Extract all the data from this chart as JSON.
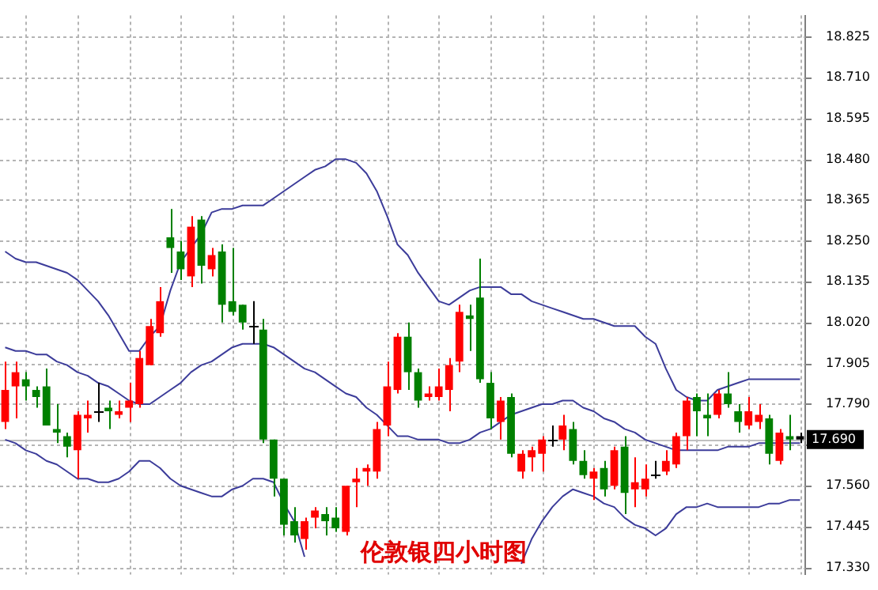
{
  "chart_data": {
    "type": "candlestick",
    "title": "伦敦银四小时图",
    "categories": [
      null,
      null,
      null,
      null,
      null,
      null,
      null,
      null,
      null,
      null,
      null,
      null,
      null,
      null,
      null,
      null,
      null,
      null,
      null,
      null,
      null,
      null,
      null,
      null,
      null,
      null,
      null,
      null,
      null,
      null,
      null,
      null,
      null,
      null,
      null,
      null,
      null,
      null,
      null,
      null,
      null,
      null,
      null,
      null,
      null,
      null,
      null,
      null,
      null,
      null,
      null,
      null,
      null,
      null,
      null,
      null,
      null,
      null,
      null,
      null,
      null,
      null,
      null,
      null,
      null,
      null,
      null,
      null,
      null,
      null,
      null,
      null,
      null,
      null,
      null,
      null,
      null,
      null
    ],
    "ohlc": [
      [
        17.74,
        17.91,
        17.72,
        17.83
      ],
      [
        17.84,
        17.91,
        17.75,
        17.88
      ],
      [
        17.86,
        17.88,
        17.8,
        17.84
      ],
      [
        17.83,
        17.84,
        17.78,
        17.81
      ],
      [
        17.84,
        17.89,
        17.73,
        17.73
      ],
      [
        17.72,
        17.79,
        17.68,
        17.71
      ],
      [
        17.7,
        17.71,
        17.64,
        17.67
      ],
      [
        17.66,
        17.77,
        17.58,
        17.76
      ],
      [
        17.75,
        17.8,
        17.71,
        17.76
      ],
      [
        17.77,
        17.85,
        17.74,
        17.77
      ],
      [
        17.78,
        17.8,
        17.72,
        17.77
      ],
      [
        17.76,
        17.8,
        17.75,
        17.77
      ],
      [
        17.78,
        17.85,
        17.74,
        17.8
      ],
      [
        17.79,
        17.94,
        17.78,
        17.92
      ],
      [
        17.9,
        18.03,
        17.9,
        18.01
      ],
      [
        17.99,
        18.12,
        17.98,
        18.08
      ],
      [
        18.26,
        18.34,
        18.16,
        18.23
      ],
      [
        18.22,
        18.25,
        18.14,
        18.17
      ],
      [
        18.15,
        18.32,
        18.12,
        18.29
      ],
      [
        18.31,
        18.32,
        18.13,
        18.18
      ],
      [
        18.17,
        18.23,
        18.15,
        18.21
      ],
      [
        18.22,
        18.24,
        18.02,
        18.07
      ],
      [
        18.08,
        18.23,
        18.04,
        18.05
      ],
      [
        18.07,
        18.07,
        18.0,
        18.02
      ],
      [
        18.01,
        18.08,
        17.96,
        18.01
      ],
      [
        18.0,
        18.03,
        17.68,
        17.69
      ],
      [
        17.69,
        17.69,
        17.53,
        17.58
      ],
      [
        17.58,
        17.58,
        17.42,
        17.45
      ],
      [
        17.46,
        17.5,
        17.4,
        17.42
      ],
      [
        17.41,
        17.47,
        17.38,
        17.46
      ],
      [
        17.47,
        17.5,
        17.44,
        17.49
      ],
      [
        17.48,
        17.5,
        17.42,
        17.46
      ],
      [
        17.47,
        17.5,
        17.43,
        17.44
      ],
      [
        17.43,
        17.56,
        17.42,
        17.56
      ],
      [
        17.57,
        17.61,
        17.5,
        17.58
      ],
      [
        17.6,
        17.62,
        17.56,
        17.61
      ],
      [
        17.6,
        17.74,
        17.58,
        17.72
      ],
      [
        17.73,
        17.91,
        17.7,
        17.84
      ],
      [
        17.83,
        17.99,
        17.82,
        17.98
      ],
      [
        17.98,
        18.02,
        17.83,
        17.88
      ],
      [
        17.88,
        17.89,
        17.78,
        17.8
      ],
      [
        17.81,
        17.84,
        17.8,
        17.82
      ],
      [
        17.81,
        17.89,
        17.8,
        17.84
      ],
      [
        17.83,
        17.92,
        17.77,
        17.9
      ],
      [
        17.91,
        18.07,
        17.88,
        18.05
      ],
      [
        18.04,
        18.07,
        17.94,
        18.03
      ],
      [
        18.09,
        18.2,
        17.85,
        17.86
      ],
      [
        17.85,
        17.88,
        17.72,
        17.75
      ],
      [
        17.74,
        17.81,
        17.69,
        17.8
      ],
      [
        17.81,
        17.82,
        17.64,
        17.65
      ],
      [
        17.6,
        17.66,
        17.58,
        17.65
      ],
      [
        17.64,
        17.67,
        17.6,
        17.66
      ],
      [
        17.65,
        17.7,
        17.6,
        17.69
      ],
      [
        17.69,
        17.73,
        17.67,
        17.69
      ],
      [
        17.69,
        17.76,
        17.66,
        17.73
      ],
      [
        17.72,
        17.74,
        17.62,
        17.63
      ],
      [
        17.63,
        17.66,
        17.58,
        17.59
      ],
      [
        17.58,
        17.61,
        17.52,
        17.6
      ],
      [
        17.61,
        17.63,
        17.53,
        17.55
      ],
      [
        17.56,
        17.67,
        17.55,
        17.66
      ],
      [
        17.67,
        17.7,
        17.48,
        17.54
      ],
      [
        17.55,
        17.64,
        17.5,
        17.57
      ],
      [
        17.55,
        17.62,
        17.53,
        17.58
      ],
      [
        17.59,
        17.63,
        17.58,
        17.59
      ],
      [
        17.6,
        17.66,
        17.59,
        17.63
      ],
      [
        17.62,
        17.71,
        17.61,
        17.7
      ],
      [
        17.7,
        17.81,
        17.66,
        17.8
      ],
      [
        17.81,
        17.82,
        17.7,
        17.77
      ],
      [
        17.76,
        17.82,
        17.7,
        17.75
      ],
      [
        17.76,
        17.83,
        17.75,
        17.82
      ],
      [
        17.82,
        17.88,
        17.78,
        17.79
      ],
      [
        17.77,
        17.79,
        17.71,
        17.74
      ],
      [
        17.73,
        17.81,
        17.72,
        17.77
      ],
      [
        17.74,
        17.79,
        17.72,
        17.76
      ],
      [
        17.75,
        17.76,
        17.62,
        17.65
      ],
      [
        17.63,
        17.72,
        17.62,
        17.71
      ],
      [
        17.7,
        17.76,
        17.66,
        17.69
      ],
      [
        17.7,
        17.71,
        17.68,
        17.69
      ]
    ],
    "colors": [
      "#ff0000",
      "#ff0000",
      "#008000",
      "#008000",
      "#008000",
      "#008000",
      "#008000",
      "#ff0000",
      "#ff0000",
      "#000000",
      "#008000",
      "#ff0000",
      "#ff0000",
      "#ff0000",
      "#ff0000",
      "#ff0000",
      "#008000",
      "#008000",
      "#ff0000",
      "#008000",
      "#ff0000",
      "#008000",
      "#008000",
      "#008000",
      "#000000",
      "#008000",
      "#008000",
      "#008000",
      "#008000",
      "#ff0000",
      "#ff0000",
      "#008000",
      "#008000",
      "#ff0000",
      "#ff0000",
      "#ff0000",
      "#ff0000",
      "#ff0000",
      "#ff0000",
      "#008000",
      "#008000",
      "#ff0000",
      "#ff0000",
      "#ff0000",
      "#ff0000",
      "#008000",
      "#008000",
      "#008000",
      "#ff0000",
      "#008000",
      "#ff0000",
      "#ff0000",
      "#ff0000",
      "#000000",
      "#ff0000",
      "#008000",
      "#008000",
      "#ff0000",
      "#008000",
      "#ff0000",
      "#008000",
      "#ff0000",
      "#ff0000",
      "#000000",
      "#ff0000",
      "#ff0000",
      "#ff0000",
      "#008000",
      "#008000",
      "#ff0000",
      "#008000",
      "#008000",
      "#ff0000",
      "#ff0000",
      "#008000",
      "#ff0000",
      "#008000",
      "#000000"
    ],
    "series": [
      {
        "type": "line",
        "color": "#3c3c9a",
        "values": [
          18.22,
          18.2,
          18.19,
          18.19,
          18.18,
          18.17,
          18.16,
          18.14,
          18.11,
          18.08,
          18.04,
          17.99,
          17.94,
          17.94,
          17.98,
          18.01,
          18.11,
          18.19,
          18.23,
          18.27,
          18.33,
          18.34,
          18.34,
          18.35,
          18.35,
          18.35,
          18.37,
          18.39,
          18.41,
          18.43,
          18.45,
          18.46,
          18.48,
          18.48,
          18.47,
          18.44,
          18.39,
          18.32,
          18.24,
          18.21,
          18.16,
          18.12,
          18.08,
          18.07,
          18.09,
          18.11,
          18.12,
          18.12,
          18.12,
          18.1,
          18.1,
          18.08,
          18.07,
          18.06,
          18.05,
          18.04,
          18.03,
          18.03,
          18.02,
          18.01,
          18.01,
          18.01,
          17.98,
          17.96,
          17.89,
          17.83,
          17.81,
          17.8,
          17.8,
          17.83,
          17.84,
          17.85,
          17.86,
          17.86,
          17.86,
          17.86,
          17.86,
          17.86
        ]
      },
      {
        "type": "line",
        "color": "#3c3c9a",
        "values": [
          17.95,
          17.94,
          17.94,
          17.93,
          17.93,
          17.91,
          17.9,
          17.88,
          17.87,
          17.85,
          17.84,
          17.82,
          17.8,
          17.79,
          17.79,
          17.81,
          17.83,
          17.85,
          17.88,
          17.9,
          17.91,
          17.93,
          17.95,
          17.96,
          17.96,
          17.96,
          17.95,
          17.93,
          17.91,
          17.89,
          17.88,
          17.86,
          17.84,
          17.82,
          17.81,
          17.78,
          17.76,
          17.73,
          17.7,
          17.7,
          17.69,
          17.69,
          17.69,
          17.68,
          17.68,
          17.69,
          17.71,
          17.72,
          17.74,
          17.76,
          17.77,
          17.78,
          17.79,
          17.79,
          17.8,
          17.8,
          17.78,
          17.77,
          17.75,
          17.74,
          17.72,
          17.71,
          17.69,
          17.68,
          17.67,
          17.66,
          17.66,
          17.66,
          17.66,
          17.66,
          17.67,
          17.67,
          17.67,
          17.68,
          17.68,
          17.68,
          17.68,
          17.68
        ]
      },
      {
        "type": "line",
        "color": "#3c3c9a",
        "values": [
          17.69,
          17.68,
          17.66,
          17.65,
          17.63,
          17.62,
          17.6,
          17.58,
          17.58,
          17.57,
          17.57,
          17.58,
          17.6,
          17.63,
          17.63,
          17.61,
          17.58,
          17.56,
          17.55,
          17.54,
          17.53,
          17.53,
          17.55,
          17.56,
          17.58,
          17.58,
          17.57,
          17.51,
          17.46,
          17.36,
          null,
          null,
          null,
          null,
          null,
          null,
          null,
          null,
          null,
          null,
          null,
          null,
          null,
          null,
          null,
          null,
          null,
          null,
          null,
          null,
          17.34,
          17.41,
          17.46,
          17.5,
          17.53,
          17.55,
          17.54,
          17.53,
          17.51,
          17.5,
          17.47,
          17.45,
          17.44,
          17.42,
          17.44,
          17.48,
          17.5,
          17.5,
          17.51,
          17.5,
          17.5,
          17.5,
          17.5,
          17.5,
          17.51,
          17.51,
          17.52,
          17.52
        ]
      }
    ],
    "ylim": [
      17.31,
      18.885
    ],
    "yticks": [
      18.825,
      {
        "value": 18.71,
        "label": "18.710"
      },
      18.595,
      {
        "value": 18.48,
        "label": "18.480"
      },
      18.365,
      {
        "value": 18.25,
        "label": "18.250"
      },
      18.135,
      {
        "value": 18.02,
        "label": "18.020"
      },
      17.905,
      {
        "value": 17.79,
        "label": "17.790"
      },
      {
        "value": 17.675,
        "label": null
      },
      {
        "value": 17.56,
        "label": "17.560"
      },
      17.445,
      {
        "value": 17.33,
        "label": "17.330"
      }
    ],
    "ref_lines": [
      {
        "axis": "y",
        "value": 17.69,
        "label": "17.690",
        "color": "#c0c0c0"
      }
    ],
    "grid": true,
    "legend": false,
    "tick_labels": "y"
  }
}
